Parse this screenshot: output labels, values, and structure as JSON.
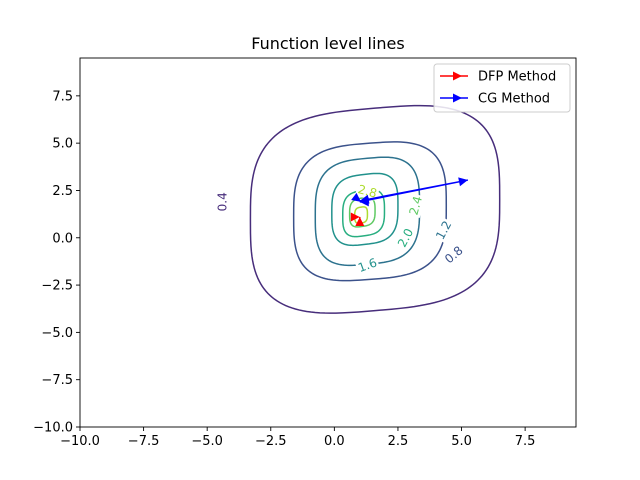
{
  "chart_data": {
    "type": "line",
    "title": "Function level lines",
    "xlabel": "",
    "ylabel": "",
    "xlim": [
      -10.0,
      9.5
    ],
    "ylim": [
      -10.0,
      9.5
    ],
    "x_ticks": [
      -10.0,
      -7.5,
      -5.0,
      -2.5,
      0.0,
      2.5,
      5.0,
      7.5
    ],
    "y_ticks": [
      -10.0,
      -7.5,
      -5.0,
      -2.5,
      0.0,
      2.5,
      5.0,
      7.5
    ],
    "x_tick_labels": [
      "−10.0",
      "−7.5",
      "−5.0",
      "−2.5",
      "0.0",
      "2.5",
      "5.0",
      "7.5"
    ],
    "y_tick_labels": [
      "−10.0",
      "−7.5",
      "−5.0",
      "−2.5",
      "0.0",
      "2.5",
      "5.0",
      "7.5"
    ],
    "grid": false,
    "legend": "top-right",
    "contours": [
      {
        "level": 0.4,
        "label": "0.4",
        "color": "#472d7b",
        "cx": 1.6,
        "cy": 1.5,
        "rx": 4.9,
        "ry": 5.35,
        "y_shift": 0.55,
        "label_at": [
          -4.4,
          1.9
        ],
        "label_angle": -90
      },
      {
        "level": 0.8,
        "label": "0.8",
        "color": "#3b528b",
        "cx": 1.4,
        "cy": 1.4,
        "rx": 3.0,
        "ry": 3.6,
        "y_shift": 0.3,
        "label_at": [
          4.7,
          -0.9
        ],
        "label_angle": -40
      },
      {
        "level": 1.2,
        "label": "1.2",
        "color": "#2c728e",
        "cx": 1.3,
        "cy": 1.4,
        "rx": 2.05,
        "ry": 2.8,
        "y_shift": 0.25,
        "label_at": [
          4.3,
          0.4
        ],
        "label_angle": -62
      },
      {
        "level": 1.6,
        "label": "1.6",
        "color": "#21918c",
        "cx": 1.2,
        "cy": 1.5,
        "rx": 1.3,
        "ry": 1.85,
        "y_shift": 0.2,
        "label_at": [
          1.3,
          -1.45
        ],
        "label_angle": -20
      },
      {
        "level": 2.0,
        "label": "2.0",
        "color": "#28ae80",
        "cx": 1.15,
        "cy": 1.3,
        "rx": 0.82,
        "ry": 1.2,
        "y_shift": 0.15,
        "label_at": [
          2.8,
          0.0
        ],
        "label_angle": -62
      },
      {
        "level": 2.4,
        "label": "2.4",
        "color": "#5ec962",
        "cx": 1.1,
        "cy": 1.35,
        "rx": 0.5,
        "ry": 0.75,
        "y_shift": 0.1,
        "label_at": [
          3.2,
          1.7
        ],
        "label_angle": -75
      },
      {
        "level": 2.8,
        "label": "2.8",
        "color": "#addc30",
        "cx": 1.05,
        "cy": 1.2,
        "rx": 0.25,
        "ry": 0.42,
        "y_shift": 0.05,
        "label_at": [
          1.3,
          2.45
        ],
        "label_angle": 15
      }
    ],
    "series": [
      {
        "name": "DFP Method",
        "color": "#ff0000",
        "x": [
          1.0,
          1.0,
          1.0
        ],
        "y": [
          1.0,
          1.1,
          1.1
        ]
      },
      {
        "name": "CG Method",
        "color": "#0000ff",
        "x": [
          1.0,
          5.25,
          1.0,
          1.05,
          1.0
        ],
        "y": [
          1.9,
          3.05,
          1.95,
          1.9,
          1.9
        ]
      }
    ]
  }
}
